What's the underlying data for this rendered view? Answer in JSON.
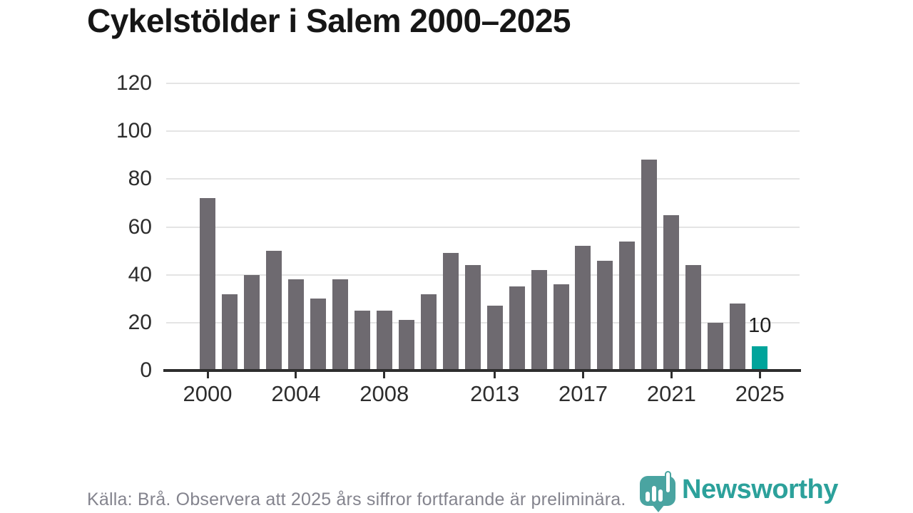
{
  "chart_data": {
    "type": "bar",
    "title": "Cykelstölder i Salem 2000–2025",
    "categories": [
      2000,
      2001,
      2002,
      2003,
      2004,
      2005,
      2006,
      2007,
      2008,
      2009,
      2010,
      2011,
      2012,
      2013,
      2014,
      2015,
      2016,
      2017,
      2018,
      2019,
      2020,
      2021,
      2022,
      2023,
      2024,
      2025
    ],
    "values": [
      72,
      32,
      40,
      50,
      38,
      30,
      38,
      25,
      25,
      21,
      32,
      49,
      44,
      27,
      35,
      42,
      36,
      52,
      46,
      54,
      88,
      65,
      44,
      20,
      28,
      10
    ],
    "highlight_year": 2025,
    "highlight_value_label": "10",
    "y_ticks": [
      0,
      20,
      40,
      60,
      80,
      100,
      120
    ],
    "x_tick_years": [
      2000,
      2004,
      2008,
      2013,
      2017,
      2021,
      2025
    ],
    "ylim": [
      0,
      120
    ],
    "grid": true,
    "legend_position": "none",
    "bar_color": "#6e6a70",
    "highlight_color": "#00a49b",
    "grid_color": "#e4e4e4",
    "axis_color": "#2e2e2e"
  },
  "footer": {
    "source_note": "Källa: Brå. Observera att 2025 års siffror fortfarande är preliminära."
  },
  "logo": {
    "wordmark": "Newsworthy",
    "icon": "newsworthy-pin-icon",
    "color": "#2ca19b",
    "pin_color": "#4aa4a1"
  }
}
